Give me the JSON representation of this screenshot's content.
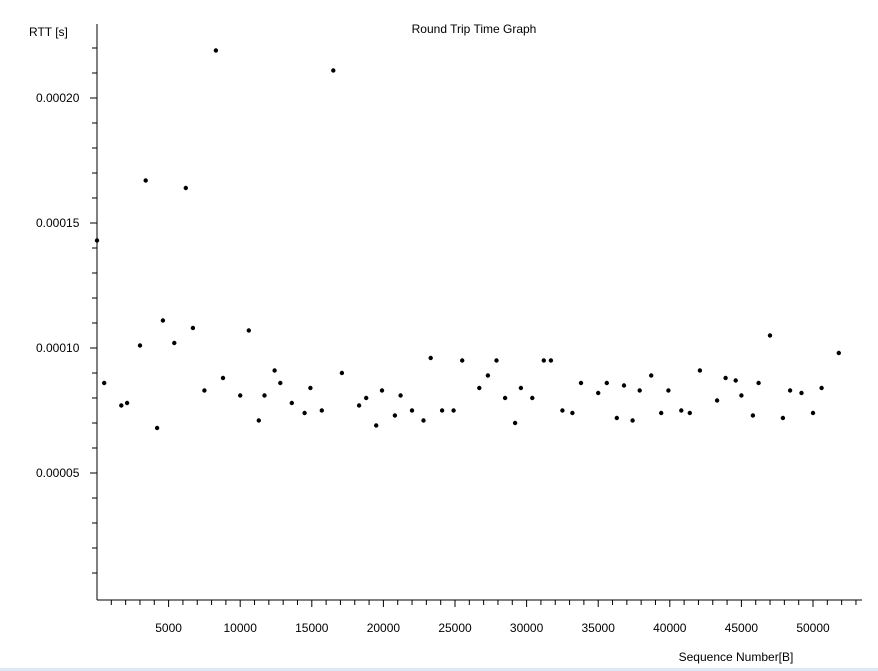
{
  "colors": {
    "background": "#ffffff",
    "axis": "#000000",
    "point": "#000000",
    "bottom_strip": "#dce8f4"
  },
  "chart_data": {
    "type": "scatter",
    "title": "Round Trip Time Graph",
    "xlabel": "Sequence Number[B]",
    "ylabel": "RTT [s]",
    "xlim": [
      0,
      53500
    ],
    "ylim": [
      0,
      0.000227
    ],
    "grid": false,
    "x_ticks": [
      "5000",
      "10000",
      "15000",
      "20000",
      "25000",
      "30000",
      "35000",
      "40000",
      "45000",
      "50000"
    ],
    "y_ticks": [
      "0.00005",
      "0.00010",
      "0.00015",
      "0.00020"
    ],
    "points": [
      [
        0,
        0.000143
      ],
      [
        500,
        8.6e-05
      ],
      [
        1700,
        7.7e-05
      ],
      [
        2100,
        7.8e-05
      ],
      [
        3000,
        0.000101
      ],
      [
        3400,
        0.000167
      ],
      [
        4200,
        6.8e-05
      ],
      [
        4600,
        0.000111
      ],
      [
        5400,
        0.000102
      ],
      [
        6200,
        0.000164
      ],
      [
        6700,
        0.000108
      ],
      [
        7500,
        8.3e-05
      ],
      [
        8300,
        0.000219
      ],
      [
        8800,
        8.8e-05
      ],
      [
        10000,
        8.1e-05
      ],
      [
        10600,
        0.000107
      ],
      [
        11300,
        7.1e-05
      ],
      [
        11700,
        8.1e-05
      ],
      [
        12400,
        9.1e-05
      ],
      [
        12800,
        8.6e-05
      ],
      [
        13600,
        7.8e-05
      ],
      [
        14500,
        7.4e-05
      ],
      [
        14900,
        8.4e-05
      ],
      [
        15700,
        7.5e-05
      ],
      [
        16500,
        0.000211
      ],
      [
        17100,
        9e-05
      ],
      [
        18300,
        7.7e-05
      ],
      [
        18800,
        8e-05
      ],
      [
        19500,
        6.9e-05
      ],
      [
        19900,
        8.3e-05
      ],
      [
        20800,
        7.3e-05
      ],
      [
        21200,
        8.1e-05
      ],
      [
        22000,
        7.5e-05
      ],
      [
        22800,
        7.1e-05
      ],
      [
        23300,
        9.6e-05
      ],
      [
        24100,
        7.5e-05
      ],
      [
        24900,
        7.5e-05
      ],
      [
        25500,
        9.5e-05
      ],
      [
        26700,
        8.4e-05
      ],
      [
        27300,
        8.9e-05
      ],
      [
        27900,
        9.5e-05
      ],
      [
        28500,
        8e-05
      ],
      [
        29200,
        7e-05
      ],
      [
        29600,
        8.4e-05
      ],
      [
        30400,
        8e-05
      ],
      [
        31200,
        9.5e-05
      ],
      [
        31700,
        9.5e-05
      ],
      [
        32500,
        7.5e-05
      ],
      [
        33200,
        7.4e-05
      ],
      [
        33800,
        8.6e-05
      ],
      [
        35000,
        8.2e-05
      ],
      [
        35600,
        8.6e-05
      ],
      [
        36300,
        7.2e-05
      ],
      [
        36800,
        8.5e-05
      ],
      [
        37400,
        7.1e-05
      ],
      [
        37900,
        8.3e-05
      ],
      [
        38700,
        8.9e-05
      ],
      [
        39400,
        7.4e-05
      ],
      [
        39900,
        8.3e-05
      ],
      [
        40800,
        7.5e-05
      ],
      [
        41400,
        7.4e-05
      ],
      [
        42100,
        9.1e-05
      ],
      [
        43300,
        7.9e-05
      ],
      [
        43900,
        8.8e-05
      ],
      [
        44600,
        8.7e-05
      ],
      [
        45000,
        8.1e-05
      ],
      [
        45800,
        7.3e-05
      ],
      [
        46200,
        8.6e-05
      ],
      [
        47000,
        0.000105
      ],
      [
        47900,
        7.2e-05
      ],
      [
        48400,
        8.3e-05
      ],
      [
        49200,
        8.2e-05
      ],
      [
        50000,
        7.4e-05
      ],
      [
        50600,
        8.4e-05
      ],
      [
        51800,
        9.8e-05
      ]
    ]
  }
}
